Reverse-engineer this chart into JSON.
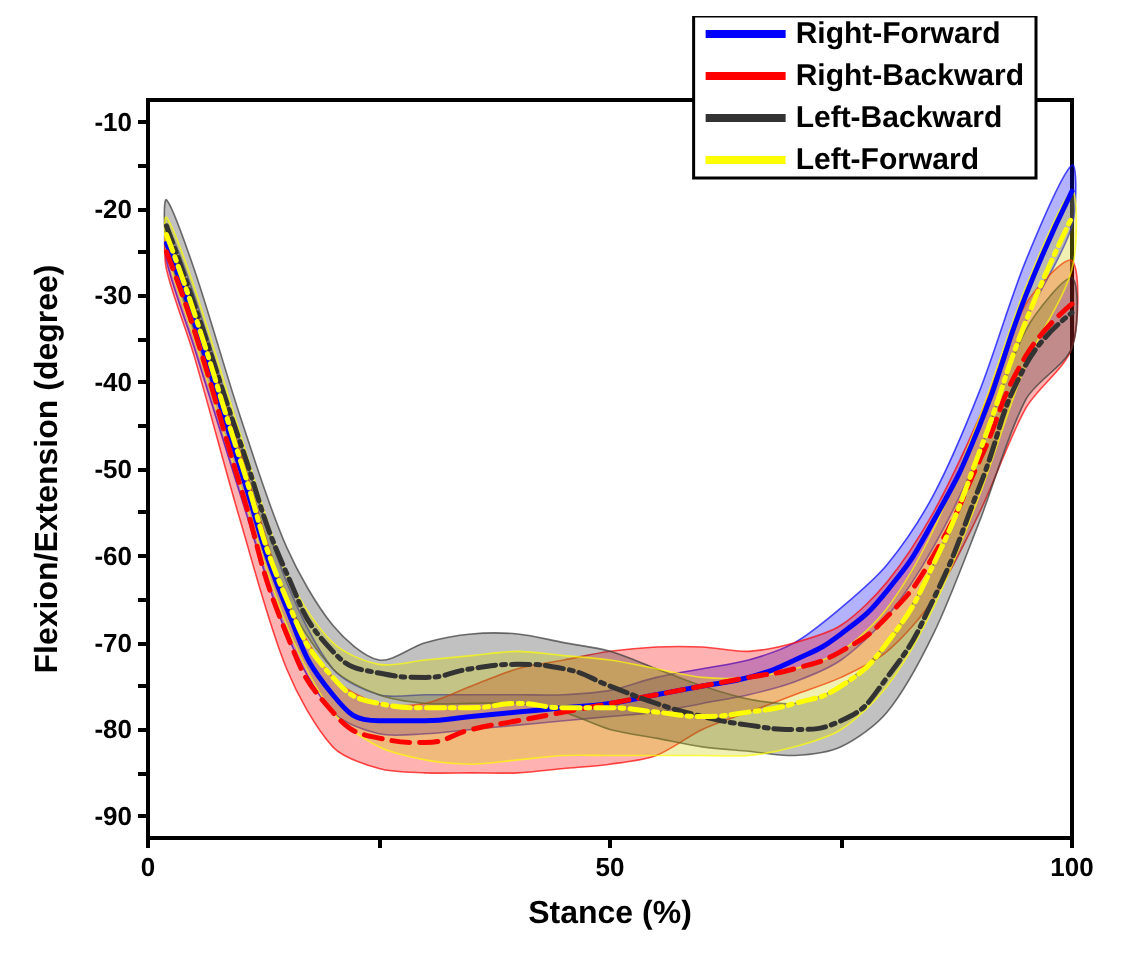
{
  "chart_data": {
    "type": "line",
    "xlabel": "Stance (%)",
    "ylabel": "Flexion/Extension (degree)",
    "x": [
      2,
      5,
      10,
      15,
      20,
      25,
      30,
      35,
      40,
      45,
      50,
      55,
      60,
      65,
      70,
      75,
      80,
      85,
      90,
      95,
      100
    ],
    "xlim": [
      0,
      100
    ],
    "xticks": [
      0,
      {
        "value": 25,
        "label": null
      },
      50,
      {
        "value": 75,
        "label": null
      },
      100
    ],
    "ylim": [
      -92.5,
      -7.5
    ],
    "yticks": [
      -90,
      {
        "value": -85,
        "label": null
      },
      -80,
      {
        "value": -75,
        "label": null
      },
      -70,
      {
        "value": -65,
        "label": null
      },
      -60,
      {
        "value": -55,
        "label": null
      },
      -50,
      {
        "value": -45,
        "label": null
      },
      -40,
      {
        "value": -35,
        "label": null
      },
      -30,
      {
        "value": -25,
        "label": null
      },
      -20,
      {
        "value": -15,
        "label": null
      },
      -10
    ],
    "grid": false,
    "legend": "top right",
    "marker": "none",
    "series": [
      {
        "name": "Right-Forward",
        "color": "#0000ff",
        "line_style": "solid",
        "values": [
          -24,
          -33,
          -50,
          -66,
          -76,
          -79,
          -79,
          -78.5,
          -78,
          -77.5,
          -77,
          -76,
          -75,
          -74,
          -72,
          -69,
          -64,
          -56,
          -45,
          -30,
          -18
        ],
        "lower": [
          -26,
          -36,
          -53,
          -69,
          -78,
          -80.5,
          -80.5,
          -80,
          -79.5,
          -79,
          -78.5,
          -78,
          -77,
          -76,
          -74.5,
          -72,
          -67,
          -59,
          -48,
          -33,
          -22
        ],
        "upper": [
          -22,
          -30,
          -47,
          -63,
          -73,
          -76,
          -76,
          -76,
          -76,
          -76,
          -75.5,
          -74,
          -73,
          -72,
          -70,
          -66,
          -61,
          -53,
          -41,
          -26,
          -15
        ]
      },
      {
        "name": "Right-Backward",
        "color": "#ff0000",
        "line_style": "dashed",
        "values": [
          -25,
          -34,
          -52,
          -69,
          -78,
          -81,
          -81.5,
          -80,
          -79,
          -78,
          -77,
          -76,
          -75,
          -74,
          -73,
          -71,
          -67,
          -60,
          -49,
          -37,
          -31
        ],
        "lower": [
          -27,
          -37,
          -56,
          -73,
          -82,
          -84.5,
          -85,
          -85,
          -85,
          -84.5,
          -84,
          -83,
          -80,
          -78,
          -76,
          -74,
          -71,
          -65,
          -55,
          -43,
          -36
        ],
        "upper": [
          -23,
          -31,
          -48,
          -65,
          -74,
          -77,
          -77,
          -75,
          -73,
          -72,
          -71,
          -70.5,
          -70.5,
          -71,
          -70,
          -68,
          -63,
          -55,
          -44,
          -31,
          -26
        ]
      },
      {
        "name": "Left-Backward",
        "color": "#333333",
        "line_style": "dashdot",
        "values": [
          -22,
          -31,
          -47,
          -62,
          -71,
          -73.5,
          -74,
          -73,
          -72.5,
          -73,
          -75,
          -77,
          -78.5,
          -79.5,
          -80,
          -79,
          -74,
          -65,
          -52,
          -38,
          -32
        ],
        "lower": [
          -24,
          -34,
          -50,
          -65,
          -73,
          -76,
          -77,
          -77,
          -77,
          -78,
          -80,
          -81,
          -82,
          -82.5,
          -83,
          -82,
          -78,
          -69,
          -56,
          -42,
          -36
        ],
        "upper": [
          -19,
          -27,
          -44,
          -59,
          -68,
          -72,
          -70,
          -69,
          -69,
          -70,
          -71,
          -73,
          -75,
          -76.5,
          -77,
          -75,
          -70,
          -61,
          -48,
          -34,
          -28
        ]
      },
      {
        "name": "Left-Forward",
        "color": "#ffff00",
        "line_style": "dashdot",
        "values": [
          -23,
          -32,
          -49,
          -65,
          -74,
          -77,
          -77.5,
          -77.5,
          -77,
          -77.5,
          -77.5,
          -78,
          -78.5,
          -78,
          -77,
          -75,
          -70,
          -61,
          -48,
          -33,
          -21
        ],
        "lower": [
          -25,
          -35,
          -52,
          -68,
          -78,
          -82,
          -83.5,
          -84,
          -83.5,
          -83,
          -83,
          -83,
          -83,
          -83,
          -82,
          -80,
          -75,
          -66,
          -53,
          -38,
          -27
        ],
        "upper": [
          -21,
          -29,
          -46,
          -62,
          -70,
          -72.5,
          -72,
          -71.5,
          -71,
          -71.5,
          -72,
          -73,
          -74,
          -74,
          -73,
          -71,
          -66,
          -57,
          -44,
          -29,
          -18
        ]
      }
    ]
  }
}
